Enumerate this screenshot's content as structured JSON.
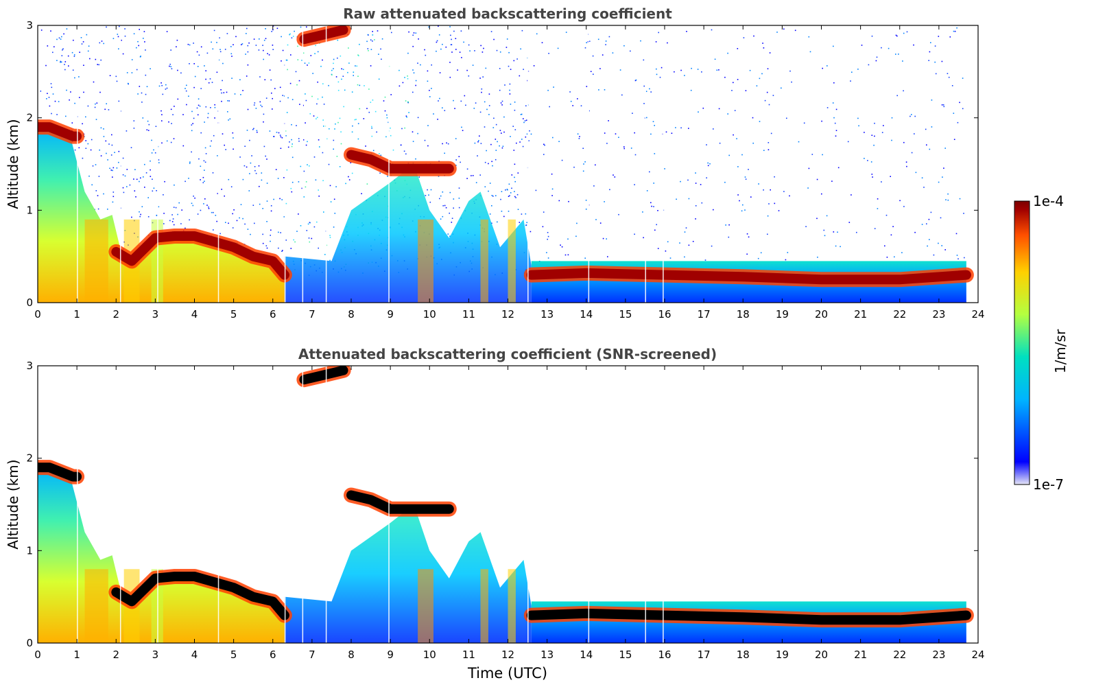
{
  "chart_data": [
    {
      "type": "heatmap",
      "title": "Raw attenuated backscattering coefficient",
      "xlabel": "",
      "ylabel": "Altitude (km)",
      "xlim": [
        0,
        24
      ],
      "ylim": [
        0,
        3
      ],
      "xticks": [
        "0",
        "1",
        "2",
        "3",
        "4",
        "5",
        "6",
        "7",
        "8",
        "9",
        "10",
        "11",
        "12",
        "13",
        "14",
        "15",
        "16",
        "17",
        "18",
        "19",
        "20",
        "21",
        "22",
        "23",
        "24"
      ],
      "yticks": [
        "0",
        "1",
        "2",
        "3"
      ],
      "data_extent_hours": [
        0,
        23.7
      ],
      "screened": false,
      "layers": [
        {
          "name": "cloud-layer-morning",
          "t": [
            0,
            0.3,
            0.6,
            0.9,
            1.0
          ],
          "alt": [
            1.9,
            1.9,
            1.85,
            1.8,
            1.8
          ]
        },
        {
          "name": "cloud-layer-boundary",
          "t": [
            2.0,
            2.4,
            3.0,
            3.5,
            4.0,
            4.5,
            5.0,
            5.5,
            6.0,
            6.3
          ],
          "alt": [
            0.55,
            0.45,
            0.7,
            0.72,
            0.72,
            0.66,
            0.6,
            0.5,
            0.45,
            0.3
          ]
        },
        {
          "name": "cloud-layer-midday",
          "t": [
            8.0,
            8.5,
            9.0,
            9.5,
            10.0,
            10.5
          ],
          "alt": [
            1.6,
            1.55,
            1.45,
            1.45,
            1.45,
            1.45
          ]
        },
        {
          "name": "cloud-layer-evening",
          "t": [
            12.6,
            14,
            16,
            18,
            20,
            22,
            23.7
          ],
          "alt": [
            0.3,
            0.32,
            0.3,
            0.28,
            0.25,
            0.25,
            0.3
          ]
        },
        {
          "name": "cloud-layer-top",
          "t": [
            6.8,
            7.3,
            7.8
          ],
          "alt": [
            2.85,
            2.9,
            2.95
          ]
        }
      ]
    },
    {
      "type": "heatmap",
      "title": "Attenuated backscattering coefficient (SNR-screened)",
      "xlabel": "Time (UTC)",
      "ylabel": "Altitude (km)",
      "xlim": [
        0,
        24
      ],
      "ylim": [
        0,
        3
      ],
      "xticks": [
        "0",
        "1",
        "2",
        "3",
        "4",
        "5",
        "6",
        "7",
        "8",
        "9",
        "10",
        "11",
        "12",
        "13",
        "14",
        "15",
        "16",
        "17",
        "18",
        "19",
        "20",
        "21",
        "22",
        "23",
        "24"
      ],
      "yticks": [
        "0",
        "1",
        "2",
        "3"
      ],
      "data_extent_hours": [
        0,
        23.7
      ],
      "screened": true,
      "layers": [
        {
          "name": "cloud-layer-morning",
          "t": [
            0,
            0.3,
            0.6,
            0.9,
            1.0
          ],
          "alt": [
            1.9,
            1.9,
            1.85,
            1.8,
            1.8
          ]
        },
        {
          "name": "cloud-layer-boundary",
          "t": [
            2.0,
            2.4,
            3.0,
            3.5,
            4.0,
            4.5,
            5.0,
            5.5,
            6.0,
            6.3
          ],
          "alt": [
            0.55,
            0.45,
            0.7,
            0.72,
            0.72,
            0.66,
            0.6,
            0.5,
            0.45,
            0.3
          ]
        },
        {
          "name": "cloud-layer-midday",
          "t": [
            8.0,
            8.5,
            9.0,
            9.5,
            10.0,
            10.5
          ],
          "alt": [
            1.6,
            1.55,
            1.45,
            1.45,
            1.45,
            1.45
          ]
        },
        {
          "name": "cloud-layer-evening",
          "t": [
            12.6,
            14,
            16,
            18,
            20,
            22,
            23.7
          ],
          "alt": [
            0.3,
            0.32,
            0.3,
            0.28,
            0.25,
            0.25,
            0.3
          ]
        },
        {
          "name": "cloud-layer-top",
          "t": [
            6.8,
            7.3,
            7.8
          ],
          "alt": [
            2.85,
            2.9,
            2.95
          ]
        }
      ]
    }
  ],
  "colorbar": {
    "label": "1/m/sr",
    "max_label": "1e-4",
    "min_label": "1e-7",
    "scale": "log",
    "colormap": "jet",
    "colors": [
      "#e6e6f5",
      "#0000ff",
      "#00b4ff",
      "#00e0c0",
      "#b4ff40",
      "#ffd000",
      "#ff5000",
      "#a00000",
      "#7a0000"
    ]
  }
}
